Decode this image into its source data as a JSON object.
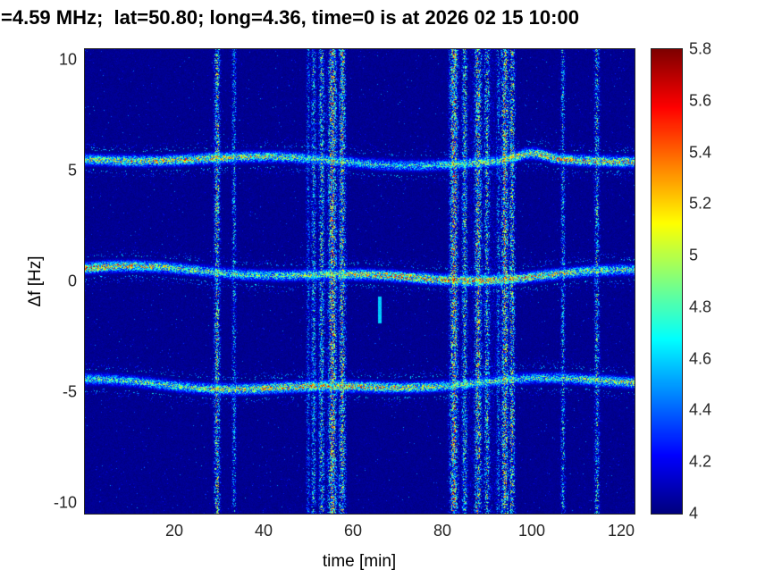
{
  "chart_data": {
    "type": "heatmap",
    "title": "=4.59 MHz;  lat=50.80; long=4.36, time=0 is at 2026 02 15 10:00",
    "xlabel": "time [min]",
    "ylabel": "Δf [Hz]",
    "xlim": [
      0,
      123
    ],
    "ylim": [
      -10.5,
      10.5
    ],
    "xticks": [
      20,
      40,
      60,
      80,
      100,
      120
    ],
    "yticks": [
      -10,
      -5,
      0,
      5,
      10
    ],
    "grid": false,
    "colorbar": {
      "min": 4,
      "max": 5.8,
      "ticks": [
        4,
        4.2,
        4.4,
        4.6,
        4.8,
        5,
        5.2,
        5.4,
        5.6,
        5.8
      ],
      "colormap": "jet",
      "position": "right"
    },
    "background_value": 4.0,
    "doppler_traces": [
      {
        "name": "upper-sideband-trace",
        "center_hz": 5.45,
        "intensity": 0.88
      },
      {
        "name": "carrier-trace",
        "center_hz": 0.35,
        "intensity": 1.0
      },
      {
        "name": "lower-sideband-trace",
        "center_hz": -4.65,
        "intensity": 0.95
      }
    ],
    "interference_stripes": [
      {
        "t": 29.6,
        "w": 0.7,
        "a": 0.8
      },
      {
        "t": 33.4,
        "w": 0.5,
        "a": 0.55
      },
      {
        "t": 50.0,
        "w": 0.5,
        "a": 0.45
      },
      {
        "t": 51.2,
        "w": 0.6,
        "a": 0.6
      },
      {
        "t": 53.0,
        "w": 0.7,
        "a": 0.7
      },
      {
        "t": 55.4,
        "w": 1.0,
        "a": 0.95
      },
      {
        "t": 57.6,
        "w": 0.8,
        "a": 0.85
      },
      {
        "t": 54.0,
        "w": 3.5,
        "a": 0.2
      },
      {
        "t": 82.6,
        "w": 1.0,
        "a": 0.95
      },
      {
        "t": 85.0,
        "w": 0.7,
        "a": 0.7
      },
      {
        "t": 88.0,
        "w": 0.9,
        "a": 0.85
      },
      {
        "t": 90.0,
        "w": 0.7,
        "a": 0.7
      },
      {
        "t": 92.5,
        "w": 0.5,
        "a": 0.5
      },
      {
        "t": 94.0,
        "w": 0.9,
        "a": 0.9
      },
      {
        "t": 95.6,
        "w": 0.7,
        "a": 0.8
      },
      {
        "t": 89.0,
        "w": 5.0,
        "a": 0.2
      },
      {
        "t": 107.0,
        "w": 0.5,
        "a": 0.6
      },
      {
        "t": 114.6,
        "w": 0.6,
        "a": 0.65
      }
    ],
    "artifact": {
      "t": 66,
      "df_top": -0.7,
      "df_bottom": -1.9,
      "value": 4.55
    }
  }
}
